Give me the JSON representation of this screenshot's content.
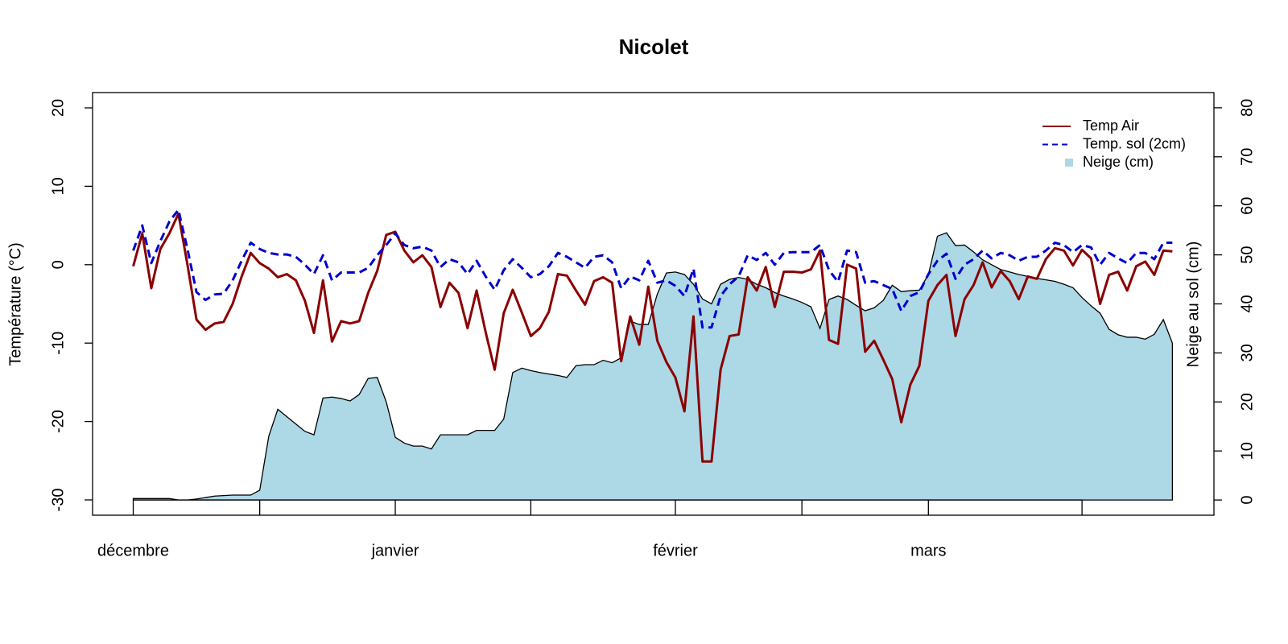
{
  "chart_data": {
    "type": "line",
    "title": "Nicolet",
    "y_label": "Température (°C)",
    "y2_label": "Neige au sol (cm)",
    "x": [
      0,
      1,
      2,
      3,
      4,
      5,
      6,
      7,
      8,
      9,
      10,
      11,
      12,
      13,
      14,
      15,
      16,
      17,
      18,
      19,
      20,
      21,
      22,
      23,
      24,
      25,
      26,
      27,
      28,
      29,
      30,
      31,
      32,
      33,
      34,
      35,
      36,
      37,
      38,
      39,
      40,
      41,
      42,
      43,
      44,
      45,
      46,
      47,
      48,
      49,
      50,
      51,
      52,
      53,
      54,
      55,
      56,
      57,
      58,
      59,
      60,
      61,
      62,
      63,
      64,
      65,
      66,
      67,
      68,
      69,
      70,
      71,
      72,
      73,
      74,
      75,
      76,
      77,
      78,
      79,
      80,
      81,
      82,
      83,
      84,
      85,
      86,
      87,
      88,
      89,
      90,
      91,
      92,
      93,
      94,
      95,
      96,
      97,
      98,
      99,
      100,
      101,
      102,
      103,
      104,
      105,
      106,
      107,
      108,
      109,
      110,
      111,
      112,
      113,
      114,
      115
    ],
    "xlim": [
      -4.5,
      119.6
    ],
    "xticks": [
      {
        "value": 0,
        "label": "décembre"
      },
      {
        "value": 14,
        "label": null
      },
      {
        "value": 29,
        "label": "janvier"
      },
      {
        "value": 44,
        "label": null
      },
      {
        "value": 60,
        "label": "février"
      },
      {
        "value": 74,
        "label": null
      },
      {
        "value": 88,
        "label": "mars"
      },
      {
        "value": 105,
        "label": null
      }
    ],
    "ylim": [
      -31.95,
      21.95
    ],
    "yticks": [
      -30,
      -20,
      -10,
      0,
      10,
      20
    ],
    "y2lim": [
      -3.1,
      83.1
    ],
    "y2ticks": [
      0,
      10,
      20,
      30,
      40,
      50,
      60,
      70,
      80
    ],
    "legend": "top-right",
    "series": [
      {
        "name": "Neige (cm)",
        "type": "area",
        "axis": "y2",
        "color": "#add8e6",
        "values": [
          0.3,
          0.3,
          0.3,
          0.3,
          0.3,
          0,
          0,
          0.2,
          0.5,
          0.8,
          0.9,
          1,
          1,
          1,
          2,
          13,
          18.5,
          17,
          15.5,
          14,
          13.3,
          20.8,
          21,
          20.7,
          20.2,
          21.5,
          24.8,
          25,
          20,
          12.8,
          11.6,
          11,
          11,
          10.4,
          13.3,
          13.3,
          13.3,
          13.3,
          14.2,
          14.2,
          14.2,
          16.5,
          26,
          26.9,
          26.4,
          26,
          25.7,
          25.4,
          25,
          27.4,
          27.6,
          27.6,
          28.5,
          28,
          29,
          36.5,
          35.8,
          35.8,
          42,
          46.3,
          46.5,
          46,
          44,
          41,
          40,
          44,
          45,
          45.4,
          45,
          44,
          43.3,
          42.3,
          41.6,
          41,
          40.3,
          39.4,
          35,
          40.9,
          41.6,
          40.9,
          39.7,
          38.6,
          39.2,
          40.7,
          43.8,
          42.5,
          42.7,
          42.8,
          46,
          53.8,
          54.5,
          51.9,
          52,
          50.6,
          49,
          48,
          47,
          46.5,
          46,
          45.6,
          45.2,
          44.9,
          44.6,
          44,
          43.3,
          41.3,
          39.6,
          38.1,
          34.8,
          33.7,
          33.2,
          33.2,
          32.8,
          33.8,
          36.8,
          32
        ]
      },
      {
        "name": "Temp Air",
        "type": "line",
        "color": "#8b0000",
        "values": [
          -0.2,
          4,
          -3,
          2,
          4,
          6.5,
          0,
          -7,
          -8.3,
          -7.5,
          -7.3,
          -5,
          -1.5,
          1.5,
          0.2,
          -0.5,
          -1.6,
          -1.2,
          -2,
          -4.6,
          -8.7,
          -2,
          -9.8,
          -7.2,
          -7.5,
          -7.2,
          -3.6,
          -0.8,
          3.8,
          4.2,
          1.8,
          0.3,
          1.2,
          -0.3,
          -5.4,
          -2.3,
          -3.6,
          -8.1,
          -3.3,
          -8.6,
          -13.4,
          -6.2,
          -3.2,
          -6.1,
          -9.1,
          -8.1,
          -6,
          -1.2,
          -1.4,
          -3.3,
          -5.1,
          -2.1,
          -1.6,
          -2.3,
          -12.3,
          -6.6,
          -10.2,
          -2.8,
          -9.7,
          -12.4,
          -14.4,
          -18.7,
          -6.6,
          -25.1,
          -25.1,
          -13.4,
          -9.1,
          -8.9,
          -1.6,
          -3.3,
          -0.3,
          -5.4,
          -0.9,
          -0.9,
          -1,
          -0.6,
          1.8,
          -9.6,
          -10.1,
          0,
          -0.5,
          -11.1,
          -9.7,
          -12.1,
          -14.6,
          -20.1,
          -15.3,
          -12.9,
          -4.6,
          -2.6,
          -1.3,
          -9.1,
          -4.4,
          -2.6,
          0.3,
          -2.9,
          -0.8,
          -2.1,
          -4.4,
          -1.5,
          -1.8,
          0.7,
          2.1,
          1.8,
          -0.1,
          1.9,
          0.8,
          -5,
          -1.3,
          -0.9,
          -3.3,
          -0.2,
          0.4,
          -1.3,
          1.8,
          1.7
        ]
      },
      {
        "name": "Temp. sol (2cm)",
        "type": "dashed",
        "color": "#0000cd",
        "values": [
          1.8,
          5,
          0.2,
          3,
          5.5,
          7,
          2,
          -3.5,
          -4.5,
          -3.8,
          -3.7,
          -2,
          0.5,
          2.8,
          2,
          1.5,
          1.3,
          1.3,
          1,
          0,
          -1.2,
          1.2,
          -2,
          -1,
          -1,
          -1,
          -0.4,
          1.2,
          2.5,
          4,
          2.5,
          2.1,
          2.3,
          1.8,
          -0.3,
          0.7,
          0.3,
          -1.2,
          0.5,
          -1.5,
          -3.2,
          -0.7,
          0.7,
          -0.4,
          -1.6,
          -1.2,
          -0.2,
          1.5,
          1,
          0.3,
          -0.4,
          1,
          1.2,
          0.3,
          -3,
          -1.5,
          -2,
          0.5,
          -2.3,
          -2,
          -2.7,
          -4,
          -0.5,
          -8,
          -8,
          -4,
          -2.5,
          -1.5,
          1.2,
          0.6,
          1.5,
          0,
          1.5,
          1.6,
          1.6,
          1.6,
          2.5,
          -0.7,
          -2.2,
          1.8,
          1.6,
          -2.3,
          -2.1,
          -2.6,
          -3.1,
          -5.9,
          -4,
          -3.5,
          -1.2,
          0.5,
          1.4,
          -1.8,
          0,
          0.7,
          1.8,
          0.8,
          1.5,
          1.2,
          0.5,
          1,
          1,
          1.8,
          2.8,
          2.5,
          1.6,
          2.5,
          2.2,
          0,
          1.5,
          0.8,
          0.2,
          1.5,
          1.5,
          0.7,
          2.8,
          2.8
        ]
      }
    ]
  }
}
